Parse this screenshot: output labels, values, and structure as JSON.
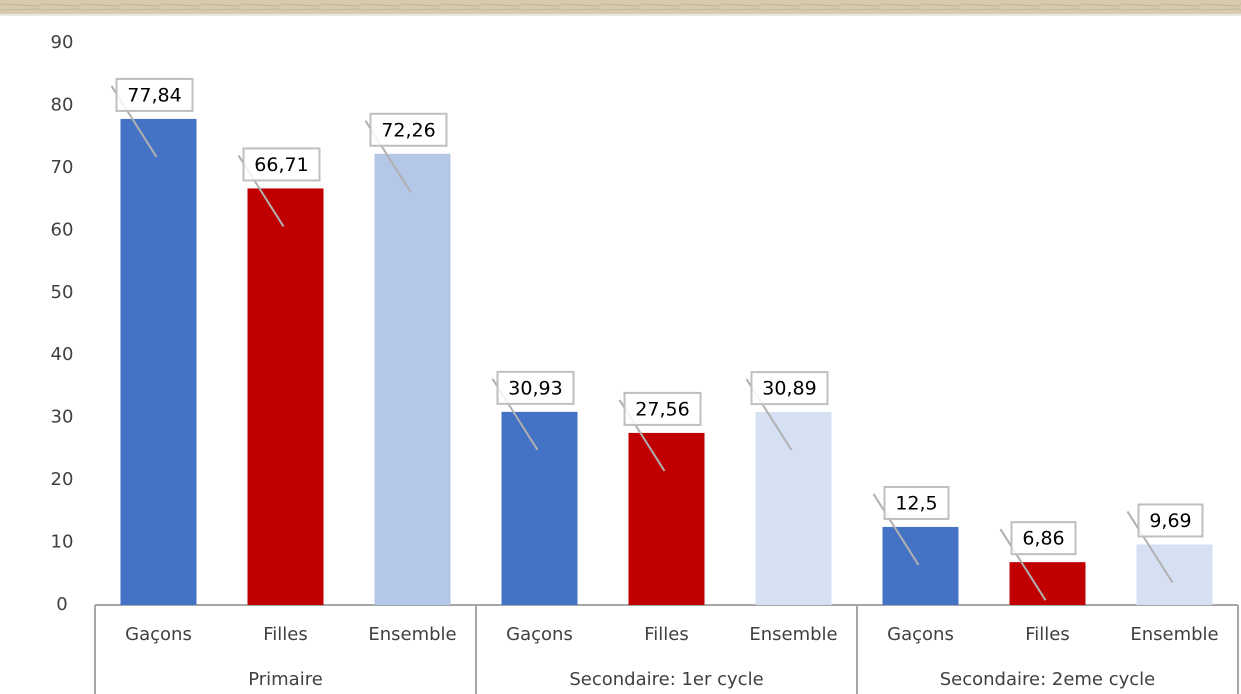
{
  "chart_data": {
    "type": "bar",
    "categories": [
      "Gaçons",
      "Filles",
      "Ensemble",
      "Gaçons",
      "Filles",
      "Ensemble",
      "Gaçons",
      "Filles",
      "Ensemble"
    ],
    "groups": [
      "Primaire",
      "Secondaire: 1er cycle",
      "Secondaire:  2eme cycle"
    ],
    "values": [
      77.84,
      66.71,
      72.26,
      30.93,
      27.56,
      30.89,
      12.5,
      6.86,
      9.69
    ],
    "value_labels": [
      "77,84",
      "66,71",
      "72,26",
      "30,93",
      "27,56",
      "30,89",
      "12,5",
      "6,86",
      "9,69"
    ],
    "colors": [
      "#4472c4",
      "#c00000",
      "#b4c7e7",
      "#4472c4",
      "#c00000",
      "#d6e0f3",
      "#4472c4",
      "#c00000",
      "#d6e0f3"
    ],
    "ylim": [
      0,
      90
    ],
    "yticks": [
      0,
      10,
      20,
      30,
      40,
      50,
      60,
      70,
      80,
      90
    ],
    "grid": false
  }
}
